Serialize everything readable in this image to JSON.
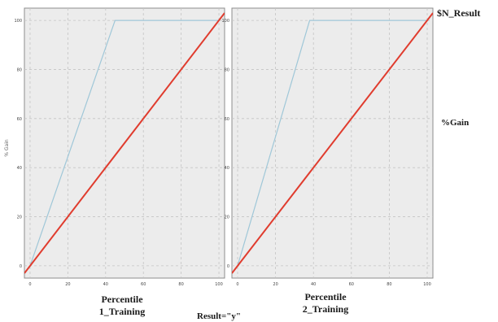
{
  "chart_data": {
    "type": "line",
    "ylabel": "% Gain",
    "xlim": [
      -3,
      103
    ],
    "ylim": [
      -5,
      105
    ],
    "xticks": [
      0,
      20,
      40,
      60,
      80,
      100
    ],
    "yticks": [
      0,
      20,
      40,
      60,
      80,
      100
    ],
    "x_tick_labels": [
      "0",
      "20",
      "40",
      "60",
      "80",
      "100"
    ],
    "y_tick_labels": [
      "0",
      "20",
      "40",
      "60",
      "80",
      "100"
    ],
    "grid": true,
    "legend": {
      "title": "$N_Result",
      "placement": "right",
      "entries": [
        {
          "label": "%Gain"
        }
      ]
    },
    "colors": {
      "best": "#9fc7d8",
      "model": "#e03c2e"
    },
    "panels": [
      {
        "label": "Percentile\n1_Training",
        "label_lines": [
          "Percentile",
          "1_Training"
        ],
        "series": [
          {
            "role": "best",
            "x": [
              0,
              45,
              100
            ],
            "y": [
              0,
              100,
              100
            ]
          },
          {
            "role": "model",
            "x": [
              -3,
              103
            ],
            "y": [
              -3,
              103
            ]
          }
        ]
      },
      {
        "label": "Percentile\n2_Training",
        "label_lines": [
          "Percentile",
          "2_Training"
        ],
        "series": [
          {
            "role": "best",
            "x": [
              0,
              38,
              100
            ],
            "y": [
              0,
              100,
              100
            ]
          },
          {
            "role": "model",
            "x": [
              -3,
              103
            ],
            "y": [
              -3,
              103
            ]
          }
        ]
      }
    ],
    "footer": "Result=\"y\""
  }
}
